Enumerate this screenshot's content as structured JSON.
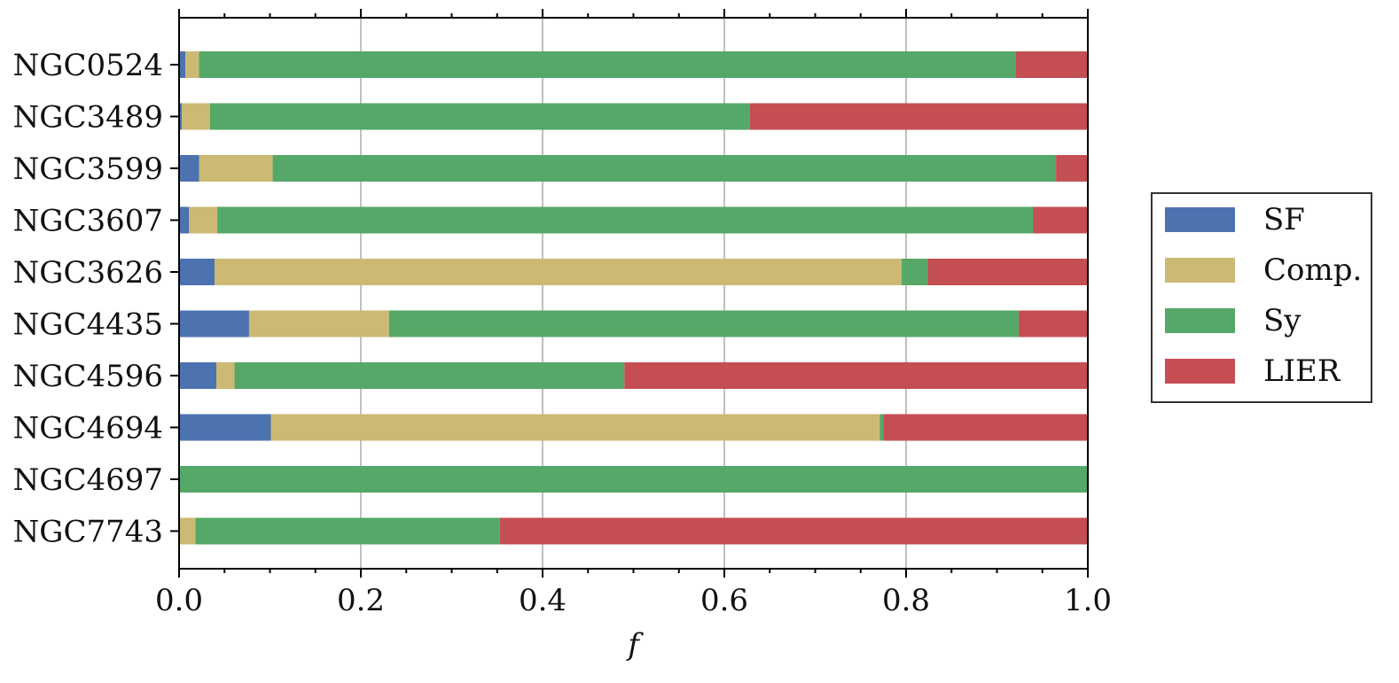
{
  "chart_data": {
    "type": "bar",
    "orientation": "horizontal",
    "stacked": true,
    "categories": [
      "NGC0524",
      "NGC3489",
      "NGC3599",
      "NGC3607",
      "NGC3626",
      "NGC4435",
      "NGC4596",
      "NGC4694",
      "NGC4697",
      "NGC7743"
    ],
    "series": [
      {
        "name": "SF",
        "color": "#4c72b0",
        "values": [
          0.007,
          0.003,
          0.022,
          0.011,
          0.039,
          0.077,
          0.041,
          0.101,
          0.0,
          0.0
        ]
      },
      {
        "name": "Comp.",
        "color": "#ccb974",
        "values": [
          0.015,
          0.031,
          0.081,
          0.031,
          0.756,
          0.154,
          0.02,
          0.67,
          0.0,
          0.018
        ]
      },
      {
        "name": "Sy",
        "color": "#55a868",
        "values": [
          0.899,
          0.594,
          0.862,
          0.898,
          0.029,
          0.693,
          0.429,
          0.004,
          1.0,
          0.335
        ]
      },
      {
        "name": "LIER",
        "color": "#c44e52",
        "values": [
          0.079,
          0.372,
          0.035,
          0.06,
          0.176,
          0.076,
          0.51,
          0.225,
          0.0,
          0.647
        ]
      }
    ],
    "xlim": [
      0,
      1
    ],
    "xticks": [
      "0.0",
      "0.2",
      "0.4",
      "0.6",
      "0.8",
      "1.0"
    ],
    "xlabel": "f",
    "ylabel": "",
    "title": "",
    "grid": "vertical major",
    "legend_position": "right, outside"
  }
}
